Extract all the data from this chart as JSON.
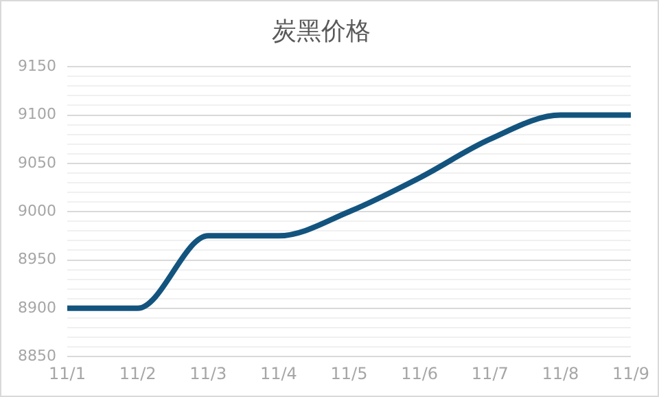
{
  "chart_data": {
    "type": "line",
    "title": "炭黑价格",
    "categories": [
      "11/1",
      "11/2",
      "11/3",
      "11/4",
      "11/5",
      "11/6",
      "11/7",
      "11/8",
      "11/9"
    ],
    "series": [
      {
        "color": "#13547f",
        "values": [
          8900,
          8900,
          8975,
          8975,
          9000,
          9035,
          9075,
          9100,
          9100
        ]
      }
    ],
    "ylim": [
      8850,
      9150
    ],
    "yticks": [
      8850,
      {
        "value": 8860,
        "label": null
      },
      {
        "value": 8870,
        "label": null
      },
      {
        "value": 8880,
        "label": null
      },
      {
        "value": 8890,
        "label": null
      },
      8900,
      {
        "value": 8910,
        "label": null
      },
      {
        "value": 8920,
        "label": null
      },
      {
        "value": 8930,
        "label": null
      },
      {
        "value": 8940,
        "label": null
      },
      8950,
      {
        "value": 8960,
        "label": null
      },
      {
        "value": 8970,
        "label": null
      },
      {
        "value": 8980,
        "label": null
      },
      {
        "value": 8990,
        "label": null
      },
      9000,
      {
        "value": 9010,
        "label": null
      },
      {
        "value": 9020,
        "label": null
      },
      {
        "value": 9030,
        "label": null
      },
      {
        "value": 9040,
        "label": null
      },
      9050,
      {
        "value": 9060,
        "label": null
      },
      {
        "value": 9070,
        "label": null
      },
      {
        "value": 9080,
        "label": null
      },
      {
        "value": 9090,
        "label": null
      },
      9100,
      {
        "value": 9110,
        "label": null
      },
      {
        "value": 9120,
        "label": null
      },
      {
        "value": 9130,
        "label": null
      },
      {
        "value": 9140,
        "label": null
      },
      9150
    ],
    "grid": "y",
    "legend": false,
    "marker": "none",
    "line_style": "solid"
  }
}
